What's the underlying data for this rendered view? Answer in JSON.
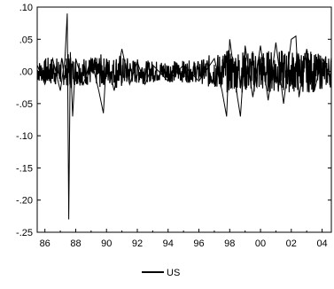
{
  "chart_data": {
    "type": "line",
    "title": "",
    "xlabel": "",
    "ylabel": "",
    "xlim": [
      1985.5,
      2004.6
    ],
    "ylim": [
      -0.25,
      0.1
    ],
    "x_ticks": [
      "86",
      "88",
      "90",
      "92",
      "94",
      "96",
      "98",
      "00",
      "02",
      "04"
    ],
    "x_tick_values": [
      1986,
      1988,
      1990,
      1992,
      1994,
      1996,
      1998,
      2000,
      2002,
      2004
    ],
    "y_ticks": [
      ".10",
      ".05",
      ".00",
      "-.05",
      "-.10",
      "-.15",
      "-.20",
      "-.25"
    ],
    "y_tick_values": [
      0.1,
      0.05,
      0.0,
      -0.05,
      -0.1,
      -0.15,
      -0.2,
      -0.25
    ],
    "grid": false,
    "legend_position": "bottom-center",
    "series": [
      {
        "name": "US",
        "color": "#000000",
        "x": [
          1985.5,
          1986.0,
          1986.5,
          1987.0,
          1987.3,
          1987.45,
          1987.55,
          1987.65,
          1987.8,
          1988.0,
          1988.5,
          1989.0,
          1989.5,
          1989.8,
          1990.0,
          1990.5,
          1991.0,
          1991.5,
          1992.0,
          1992.5,
          1993.0,
          1994.0,
          1995.0,
          1996.0,
          1997.0,
          1997.5,
          1997.8,
          1998.0,
          1998.5,
          1998.7,
          1999.0,
          1999.5,
          2000.0,
          2000.5,
          2001.0,
          2001.5,
          2002.0,
          2002.3,
          2002.5,
          2003.0,
          2003.5,
          2004.0,
          2004.6
        ],
        "values": [
          0.01,
          -0.02,
          0.02,
          -0.03,
          0.02,
          0.09,
          -0.23,
          0.03,
          -0.07,
          0.02,
          -0.02,
          0.02,
          -0.03,
          -0.065,
          0.02,
          -0.03,
          0.035,
          -0.02,
          0.015,
          -0.02,
          0.01,
          -0.015,
          0.01,
          -0.015,
          0.02,
          -0.03,
          -0.07,
          0.05,
          -0.04,
          -0.07,
          0.04,
          -0.04,
          0.04,
          -0.045,
          0.045,
          -0.05,
          0.05,
          0.055,
          -0.04,
          0.035,
          -0.03,
          0.02,
          -0.015
        ]
      }
    ]
  }
}
